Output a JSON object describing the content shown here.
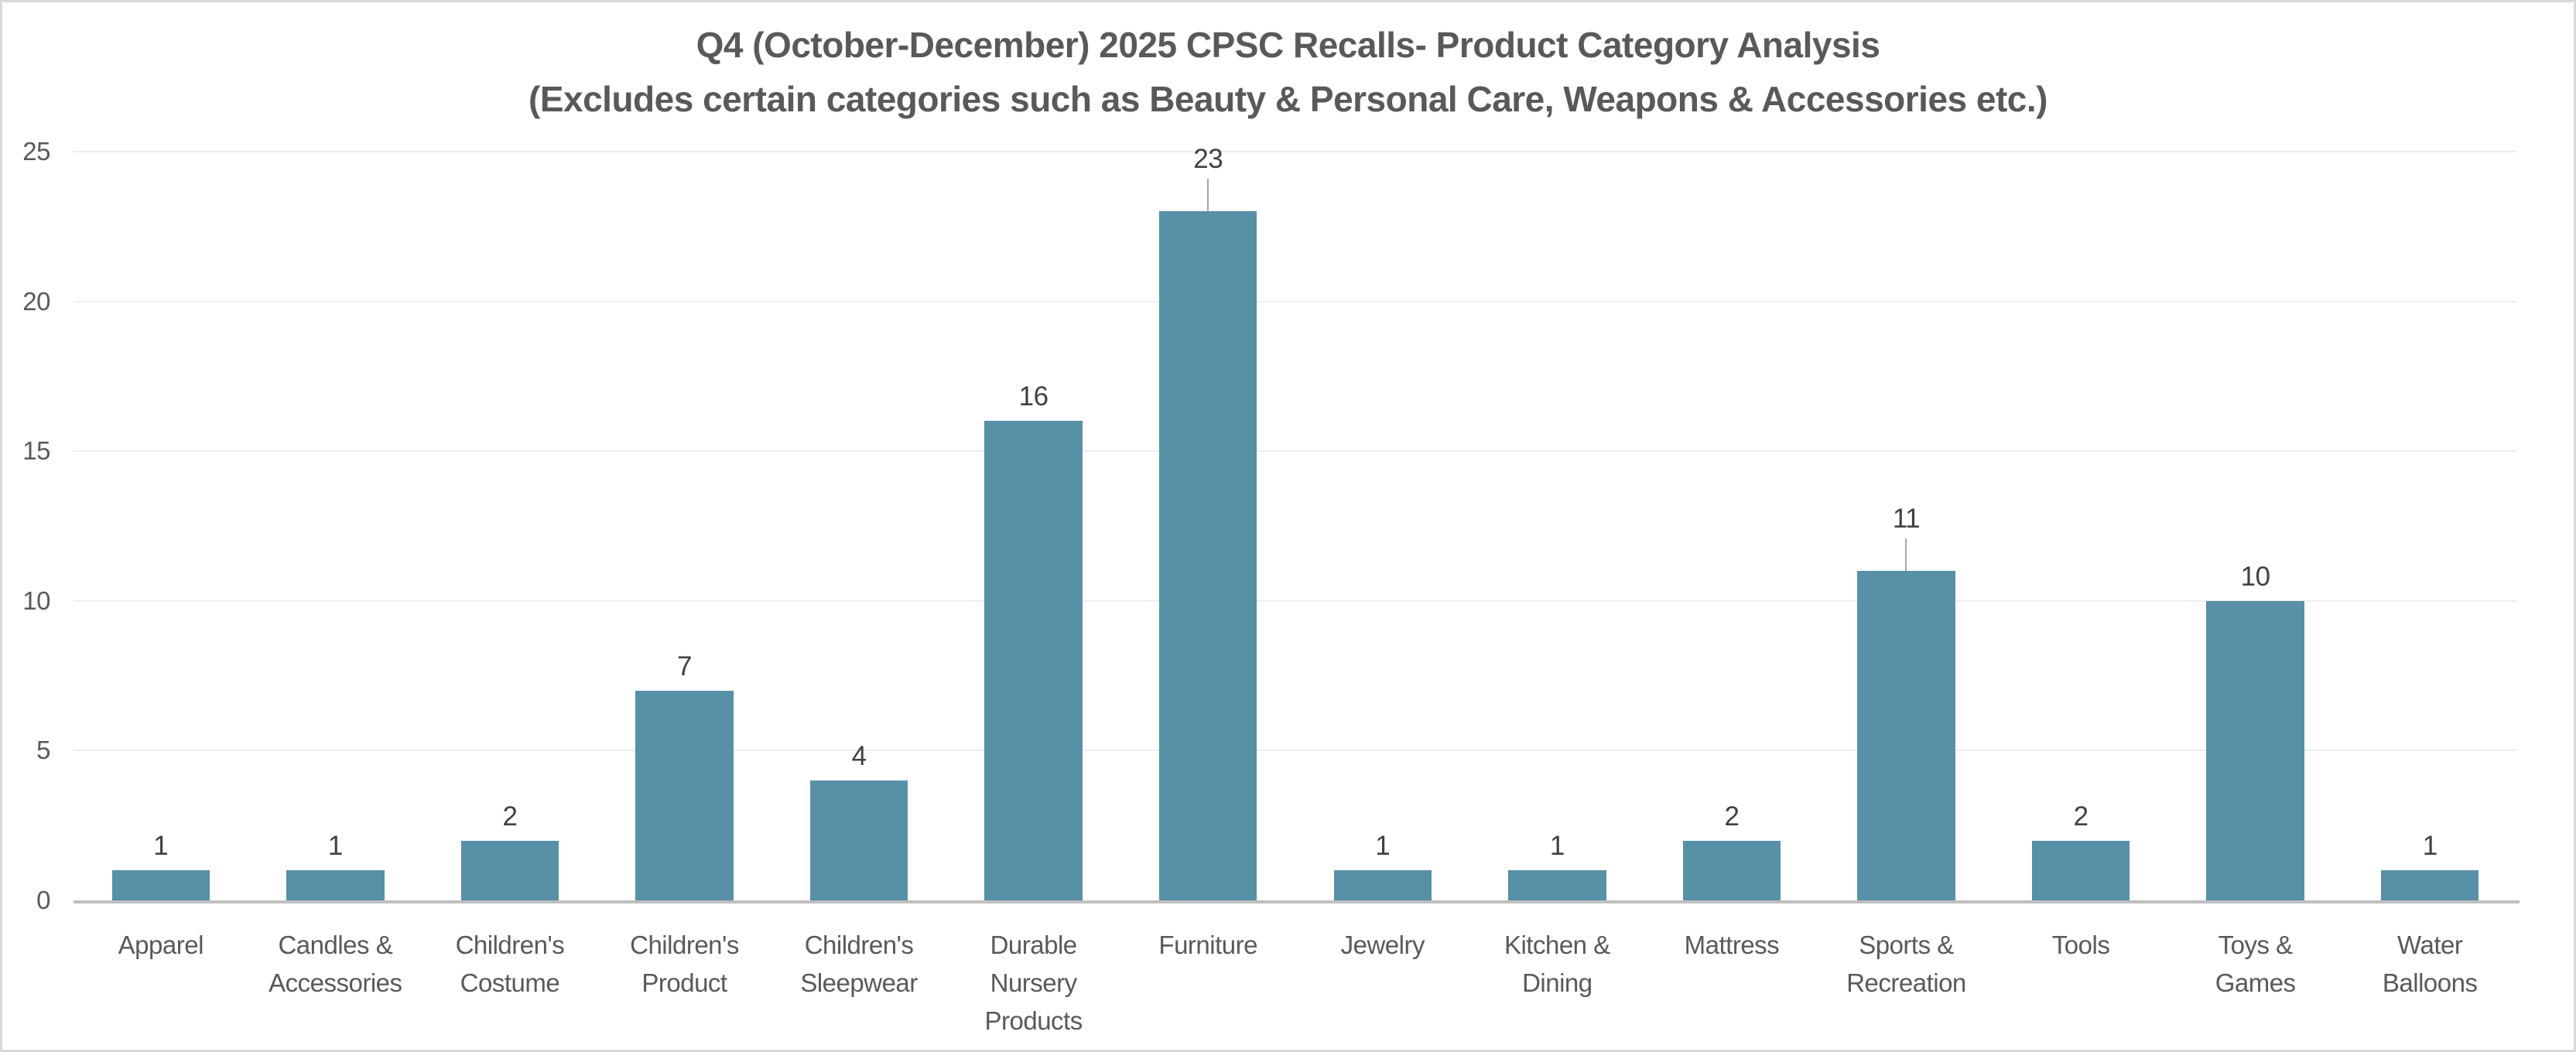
{
  "chart_data": {
    "type": "bar",
    "title": "Q4 (October-December) 2025 CPSC Recalls- Product Category Analysis",
    "subtitle": "(Excludes certain categories such as Beauty & Personal Care, Weapons & Accessories etc.)",
    "categories": [
      "Apparel",
      "Candles & Accessories",
      "Children's Costume",
      "Children's Product",
      "Children's Sleepwear",
      "Durable Nursery Products",
      "Furniture",
      "Jewelry",
      "Kitchen & Dining",
      "Mattress",
      "Sports & Recreation",
      "Tools",
      "Toys & Games",
      "Water Balloons"
    ],
    "category_label_lines": [
      "Apparel",
      "Candles &\nAccessories",
      "Children's\nCostume",
      "Children's\nProduct",
      "Children's\nSleepwear",
      "Durable\nNursery\nProducts",
      "Furniture",
      "Jewelry",
      "Kitchen &\nDining",
      "Mattress",
      "Sports &\nRecreation",
      "Tools",
      "Toys &\nGames",
      "Water\nBalloons"
    ],
    "values": [
      1,
      1,
      2,
      7,
      4,
      16,
      23,
      1,
      1,
      2,
      11,
      2,
      10,
      1
    ],
    "data_labels_shown": true,
    "leader_line_indices": [
      6,
      10
    ],
    "xlabel": "",
    "ylabel": "",
    "ylim": [
      0,
      25
    ],
    "y_ticks": [
      "0",
      "5",
      "10",
      "15",
      "20",
      "25"
    ],
    "grid": true,
    "legend": "none"
  },
  "colors": {
    "bar": "#5890A7",
    "title_text": "#595959",
    "axis_text": "#595959",
    "data_label_text": "#404040",
    "gridline": "#EDEDED",
    "axis_line": "#BFBFBF",
    "leader_line": "#A6A6A6",
    "chart_border": "#D9D9D9",
    "background": "#FFFFFF"
  }
}
